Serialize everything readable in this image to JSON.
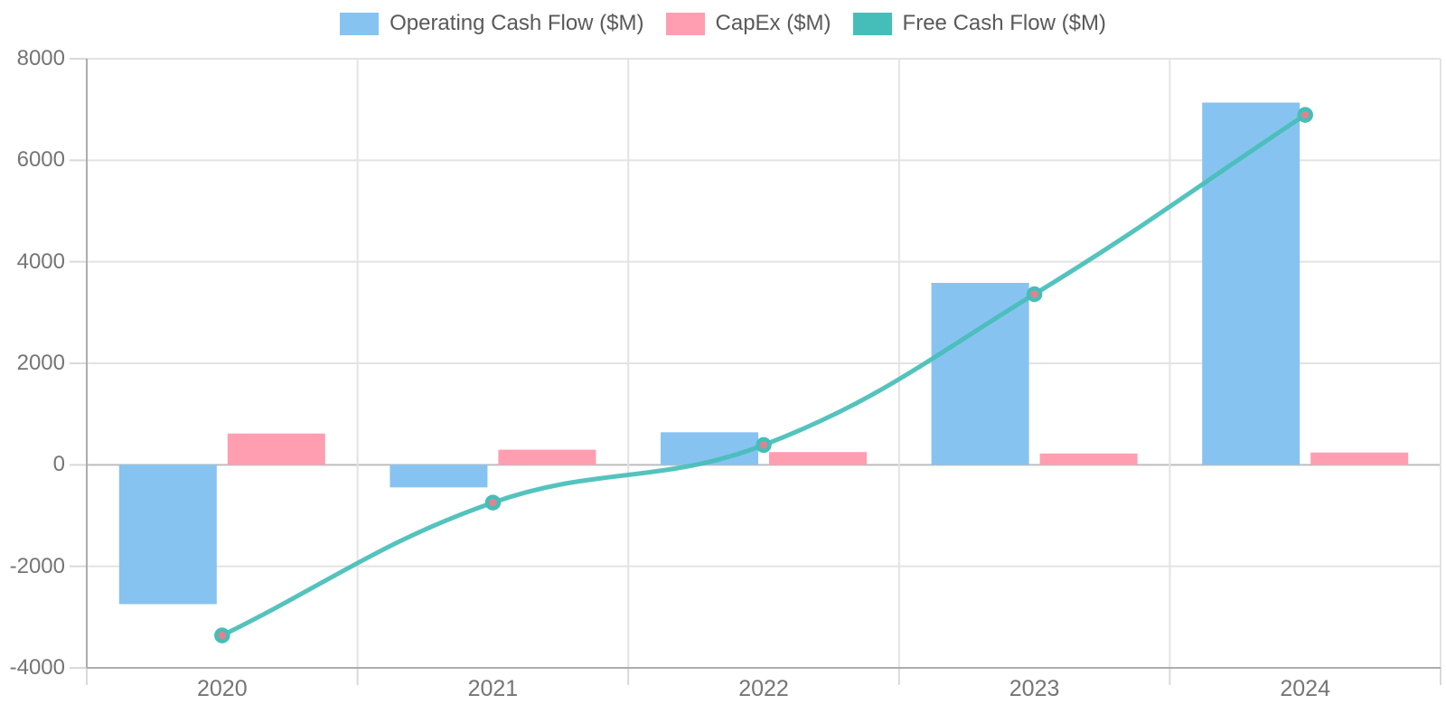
{
  "chart_data": {
    "type": "combo-bar-line",
    "categories": [
      "2020",
      "2021",
      "2022",
      "2023",
      "2024"
    ],
    "series": [
      {
        "name": "Operating Cash Flow ($M)",
        "type": "bar",
        "color": "#87C3F0",
        "values": [
          -2745,
          -445,
          642,
          3585,
          7137
        ]
      },
      {
        "name": "CapEx ($M)",
        "type": "bar",
        "color": "#FF9EB1",
        "values": [
          616,
          298,
          252,
          223,
          242
        ]
      },
      {
        "name": "Free Cash Flow ($M)",
        "type": "line",
        "color": "#45BEB9",
        "point_fill": "#DD8490",
        "values": [
          -3361,
          -743,
          390,
          3362,
          6895
        ]
      }
    ],
    "title": "",
    "xlabel": "",
    "ylabel": "",
    "ylim": [
      -4000,
      8000
    ],
    "yticks": [
      8000,
      6000,
      4000,
      2000,
      0,
      -2000,
      -4000
    ],
    "ytick_labels": [
      "8000",
      "6000",
      "4000",
      "2000",
      "0",
      "-2000",
      "-4000"
    ],
    "grid": true,
    "legend_position": "top",
    "axis_colors": {
      "grid": "#E3E3E3",
      "zero_line": "#BDBDBD",
      "border": "#ADADAD",
      "tick_mark": "#D9D9D9",
      "tick_text": "#757575"
    }
  }
}
